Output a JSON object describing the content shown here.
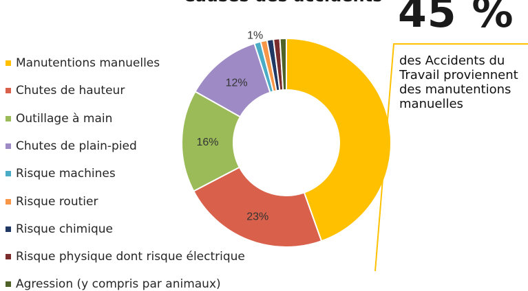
{
  "chart_data": {
    "type": "pie",
    "title": "Causes des accidents",
    "legend_position": "left",
    "categories": [
      "Manutentions manuelles",
      "Chutes de hauteur",
      "Outillage à main",
      "Chutes de plain-pied",
      "Risque machines",
      "Risque routier",
      "Risque chimique",
      "Risque physique dont risque électrique",
      "Agression (y compris par animaux)"
    ],
    "values": [
      45,
      23,
      16,
      12,
      1,
      1,
      1,
      1,
      1
    ],
    "data_labels": [
      "",
      "23%",
      "16%",
      "12%",
      "1%",
      "",
      "",
      "",
      ""
    ],
    "colors": [
      "#FFC000",
      "#D9604A",
      "#9BBB59",
      "#9E8AC4",
      "#4BACC6",
      "#F79646",
      "#1F3864",
      "#7B2C2C",
      "#4F6228"
    ]
  },
  "callout": {
    "percent": "45 %",
    "text": "des Accidents du Travail proviennent des manutentions manuelles",
    "line_color": "#FFC000"
  }
}
